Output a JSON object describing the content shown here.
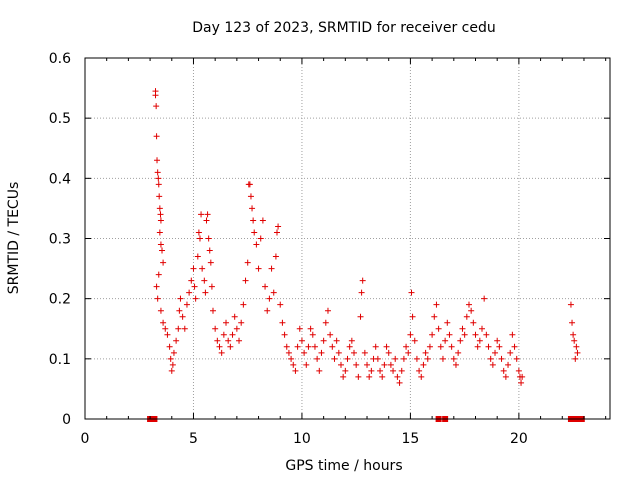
{
  "colors": {
    "data": "#e00000",
    "axis": "#000000",
    "grid": "#a0a0a0"
  },
  "chart_data": {
    "type": "scatter",
    "title": "Day 123 of 2023, SRMTID for receiver cedu",
    "xlabel": "GPS time / hours",
    "ylabel": "SRMTID / TECUs",
    "xlim": [
      0,
      24.2
    ],
    "ylim": [
      0,
      0.6
    ],
    "xticks": [
      0,
      5,
      10,
      15,
      20
    ],
    "xtick_labels": [
      "0",
      "5",
      "10",
      "15",
      "20"
    ],
    "yticks": [
      0,
      0.1,
      0.2,
      0.3,
      0.4,
      0.5,
      0.6
    ],
    "ytick_labels": [
      "0",
      "0.1",
      "0.2",
      "0.3",
      "0.4",
      "0.5",
      "0.6"
    ],
    "grid": true,
    "marker": "+",
    "series": [
      {
        "name": "SRMTID",
        "points": [
          [
            3.25,
            0.545
          ],
          [
            3.25,
            0.538
          ],
          [
            3.28,
            0.52
          ],
          [
            3.3,
            0.47
          ],
          [
            3.32,
            0.43
          ],
          [
            3.35,
            0.41
          ],
          [
            3.38,
            0.4
          ],
          [
            3.4,
            0.39
          ],
          [
            3.42,
            0.37
          ],
          [
            3.45,
            0.35
          ],
          [
            3.48,
            0.34
          ],
          [
            3.5,
            0.33
          ],
          [
            3.45,
            0.31
          ],
          [
            3.5,
            0.29
          ],
          [
            3.55,
            0.28
          ],
          [
            3.6,
            0.26
          ],
          [
            3.4,
            0.24
          ],
          [
            3.3,
            0.22
          ],
          [
            3.35,
            0.2
          ],
          [
            3.5,
            0.18
          ],
          [
            3.6,
            0.16
          ],
          [
            3.7,
            0.15
          ],
          [
            3.8,
            0.14
          ],
          [
            3.9,
            0.12
          ],
          [
            3.95,
            0.1
          ],
          [
            4.0,
            0.08
          ],
          [
            4.05,
            0.09
          ],
          [
            4.1,
            0.11
          ],
          [
            4.2,
            0.13
          ],
          [
            4.3,
            0.15
          ],
          [
            4.35,
            0.18
          ],
          [
            4.4,
            0.2
          ],
          [
            4.5,
            0.17
          ],
          [
            4.6,
            0.15
          ],
          [
            4.7,
            0.19
          ],
          [
            4.8,
            0.21
          ],
          [
            4.9,
            0.23
          ],
          [
            5.0,
            0.25
          ],
          [
            5.05,
            0.22
          ],
          [
            5.1,
            0.2
          ],
          [
            5.2,
            0.27
          ],
          [
            5.25,
            0.31
          ],
          [
            5.3,
            0.3
          ],
          [
            5.35,
            0.34
          ],
          [
            5.4,
            0.25
          ],
          [
            5.5,
            0.23
          ],
          [
            5.55,
            0.21
          ],
          [
            5.6,
            0.33
          ],
          [
            5.65,
            0.34
          ],
          [
            5.7,
            0.3
          ],
          [
            5.75,
            0.28
          ],
          [
            5.8,
            0.26
          ],
          [
            5.85,
            0.22
          ],
          [
            5.9,
            0.18
          ],
          [
            6.0,
            0.15
          ],
          [
            6.1,
            0.13
          ],
          [
            6.2,
            0.12
          ],
          [
            6.3,
            0.11
          ],
          [
            6.4,
            0.14
          ],
          [
            6.5,
            0.16
          ],
          [
            6.6,
            0.13
          ],
          [
            6.7,
            0.12
          ],
          [
            6.8,
            0.14
          ],
          [
            6.9,
            0.17
          ],
          [
            7.0,
            0.15
          ],
          [
            7.1,
            0.13
          ],
          [
            7.2,
            0.16
          ],
          [
            7.3,
            0.19
          ],
          [
            7.4,
            0.23
          ],
          [
            7.5,
            0.26
          ],
          [
            7.55,
            0.39
          ],
          [
            7.6,
            0.39
          ],
          [
            7.65,
            0.37
          ],
          [
            7.7,
            0.35
          ],
          [
            7.75,
            0.33
          ],
          [
            7.8,
            0.31
          ],
          [
            7.9,
            0.29
          ],
          [
            8.0,
            0.25
          ],
          [
            8.1,
            0.3
          ],
          [
            8.2,
            0.33
          ],
          [
            8.3,
            0.22
          ],
          [
            8.4,
            0.18
          ],
          [
            8.5,
            0.2
          ],
          [
            8.6,
            0.25
          ],
          [
            8.7,
            0.21
          ],
          [
            8.8,
            0.27
          ],
          [
            8.85,
            0.31
          ],
          [
            8.9,
            0.32
          ],
          [
            9.0,
            0.19
          ],
          [
            9.1,
            0.16
          ],
          [
            9.2,
            0.14
          ],
          [
            9.3,
            0.12
          ],
          [
            9.4,
            0.11
          ],
          [
            9.5,
            0.1
          ],
          [
            9.6,
            0.09
          ],
          [
            9.7,
            0.08
          ],
          [
            9.8,
            0.12
          ],
          [
            9.9,
            0.15
          ],
          [
            10.0,
            0.13
          ],
          [
            10.1,
            0.11
          ],
          [
            10.2,
            0.09
          ],
          [
            10.3,
            0.12
          ],
          [
            10.4,
            0.15
          ],
          [
            10.5,
            0.14
          ],
          [
            10.6,
            0.12
          ],
          [
            10.7,
            0.1
          ],
          [
            10.8,
            0.08
          ],
          [
            10.9,
            0.11
          ],
          [
            11.0,
            0.13
          ],
          [
            11.1,
            0.16
          ],
          [
            11.2,
            0.18
          ],
          [
            11.3,
            0.14
          ],
          [
            11.4,
            0.12
          ],
          [
            11.5,
            0.1
          ],
          [
            11.6,
            0.13
          ],
          [
            11.7,
            0.11
          ],
          [
            11.8,
            0.09
          ],
          [
            11.9,
            0.07
          ],
          [
            12.0,
            0.08
          ],
          [
            12.1,
            0.1
          ],
          [
            12.2,
            0.12
          ],
          [
            12.3,
            0.13
          ],
          [
            12.4,
            0.11
          ],
          [
            12.5,
            0.09
          ],
          [
            12.6,
            0.07
          ],
          [
            12.7,
            0.17
          ],
          [
            12.75,
            0.21
          ],
          [
            12.8,
            0.23
          ],
          [
            12.9,
            0.11
          ],
          [
            13.0,
            0.09
          ],
          [
            13.1,
            0.07
          ],
          [
            13.2,
            0.08
          ],
          [
            13.3,
            0.1
          ],
          [
            13.4,
            0.12
          ],
          [
            13.5,
            0.1
          ],
          [
            13.6,
            0.08
          ],
          [
            13.7,
            0.07
          ],
          [
            13.8,
            0.09
          ],
          [
            13.9,
            0.12
          ],
          [
            14.0,
            0.11
          ],
          [
            14.1,
            0.09
          ],
          [
            14.2,
            0.08
          ],
          [
            14.3,
            0.1
          ],
          [
            14.4,
            0.07
          ],
          [
            14.5,
            0.06
          ],
          [
            14.6,
            0.08
          ],
          [
            14.7,
            0.1
          ],
          [
            14.8,
            0.12
          ],
          [
            14.9,
            0.11
          ],
          [
            15.0,
            0.14
          ],
          [
            15.05,
            0.21
          ],
          [
            15.1,
            0.17
          ],
          [
            15.2,
            0.13
          ],
          [
            15.3,
            0.1
          ],
          [
            15.4,
            0.08
          ],
          [
            15.5,
            0.07
          ],
          [
            15.6,
            0.09
          ],
          [
            15.7,
            0.11
          ],
          [
            15.8,
            0.1
          ],
          [
            15.9,
            0.12
          ],
          [
            16.0,
            0.14
          ],
          [
            16.1,
            0.17
          ],
          [
            16.2,
            0.19
          ],
          [
            16.3,
            0.15
          ],
          [
            16.4,
            0.12
          ],
          [
            16.5,
            0.1
          ],
          [
            16.6,
            0.13
          ],
          [
            16.7,
            0.16
          ],
          [
            16.8,
            0.14
          ],
          [
            16.9,
            0.12
          ],
          [
            17.0,
            0.1
          ],
          [
            17.1,
            0.09
          ],
          [
            17.2,
            0.11
          ],
          [
            17.3,
            0.13
          ],
          [
            17.4,
            0.15
          ],
          [
            17.5,
            0.14
          ],
          [
            17.6,
            0.17
          ],
          [
            17.7,
            0.19
          ],
          [
            17.8,
            0.18
          ],
          [
            17.9,
            0.16
          ],
          [
            18.0,
            0.14
          ],
          [
            18.1,
            0.12
          ],
          [
            18.2,
            0.13
          ],
          [
            18.3,
            0.15
          ],
          [
            18.4,
            0.2
          ],
          [
            18.5,
            0.14
          ],
          [
            18.6,
            0.12
          ],
          [
            18.7,
            0.1
          ],
          [
            18.8,
            0.09
          ],
          [
            18.9,
            0.11
          ],
          [
            19.0,
            0.13
          ],
          [
            19.1,
            0.12
          ],
          [
            19.2,
            0.1
          ],
          [
            19.3,
            0.08
          ],
          [
            19.4,
            0.07
          ],
          [
            19.5,
            0.09
          ],
          [
            19.6,
            0.11
          ],
          [
            19.7,
            0.14
          ],
          [
            19.8,
            0.12
          ],
          [
            19.9,
            0.1
          ],
          [
            20.0,
            0.08
          ],
          [
            20.05,
            0.07
          ],
          [
            20.1,
            0.06
          ],
          [
            20.15,
            0.07
          ],
          [
            22.4,
            0.19
          ],
          [
            22.45,
            0.16
          ],
          [
            22.5,
            0.14
          ],
          [
            22.55,
            0.13
          ],
          [
            22.6,
            0.1
          ],
          [
            22.65,
            0.12
          ],
          [
            22.7,
            0.11
          ]
        ]
      }
    ],
    "zero_markers_x": [
      3.0,
      3.1,
      3.2,
      16.3,
      16.6,
      22.4,
      22.5,
      22.6,
      22.7,
      22.8,
      22.9
    ]
  }
}
